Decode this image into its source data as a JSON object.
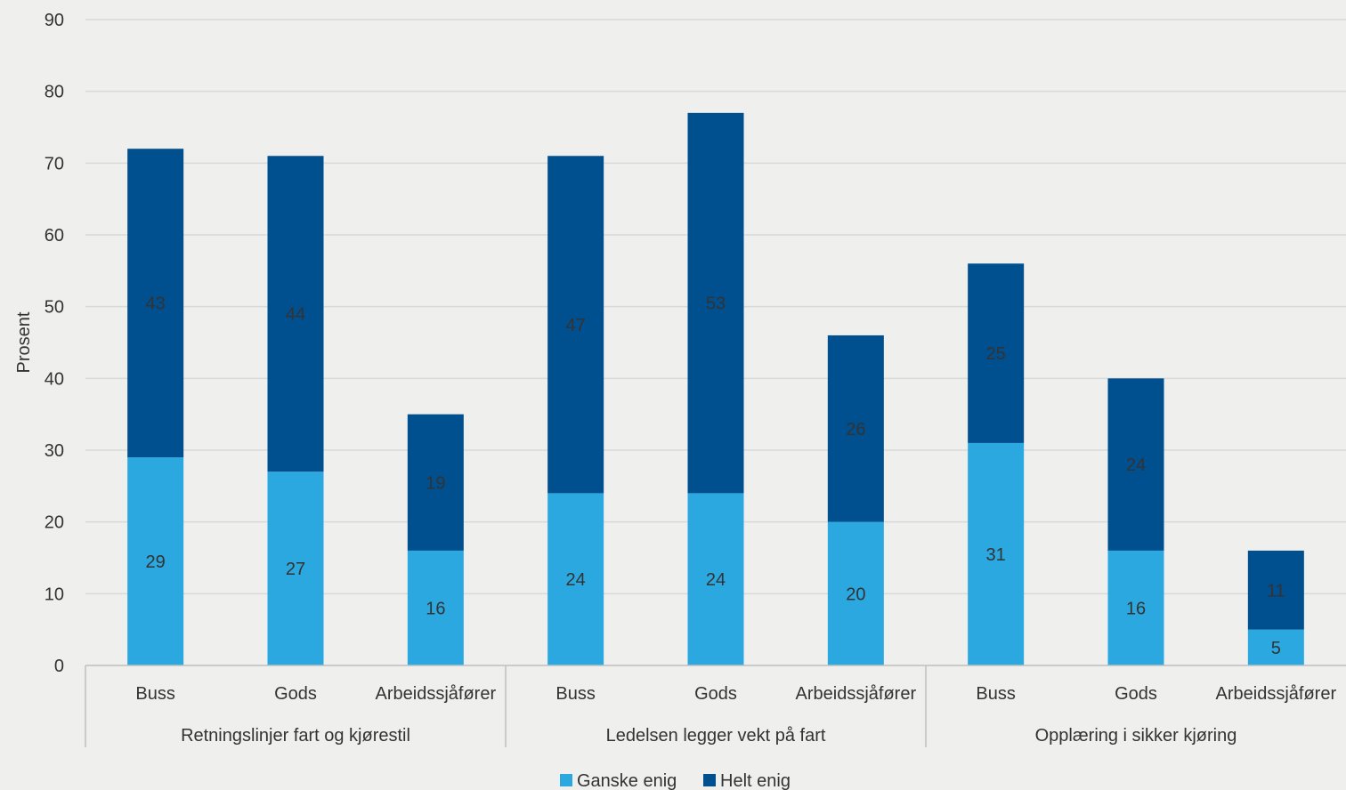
{
  "chart_data": {
    "type": "bar",
    "stacked": true,
    "title": "",
    "xlabel": "",
    "ylabel": "Prosent",
    "ylim": [
      0,
      90
    ],
    "yticks": [
      0,
      10,
      20,
      30,
      40,
      50,
      60,
      70,
      80,
      90
    ],
    "grid": true,
    "legend_position": "bottom",
    "groups": [
      {
        "label": "Retningslinjer fart og kjørestil",
        "categories": [
          "Buss",
          "Gods",
          "Arbeidssjåfører"
        ]
      },
      {
        "label": "Ledelsen legger vekt på fart",
        "categories": [
          "Buss",
          "Gods",
          "Arbeidssjåfører"
        ]
      },
      {
        "label": "Opplæring i sikker kjøring",
        "categories": [
          "Buss",
          "Gods",
          "Arbeidssjåfører"
        ]
      }
    ],
    "categories": [
      "Buss",
      "Gods",
      "Arbeidssjåfører",
      "Buss",
      "Gods",
      "Arbeidssjåfører",
      "Buss",
      "Gods",
      "Arbeidssjåfører"
    ],
    "series": [
      {
        "name": "Ganske enig",
        "color": "#2ba8e0",
        "values": [
          29,
          27,
          16,
          24,
          24,
          20,
          31,
          16,
          5
        ],
        "labels": [
          "29",
          "27",
          "16",
          "24",
          "24",
          "20",
          "31",
          "16",
          "5"
        ]
      },
      {
        "name": "Helt enig",
        "color": "#004f8f",
        "values": [
          43,
          44,
          19,
          47,
          53,
          26,
          25,
          24,
          11
        ],
        "labels": [
          "43",
          "44",
          "19",
          "47",
          "53",
          "26",
          "25",
          "24",
          "11"
        ]
      }
    ]
  },
  "colors": {
    "background": "#efefed",
    "grid": "#d9d9d9",
    "axis": "#bfbfbf",
    "text": "#333333"
  }
}
